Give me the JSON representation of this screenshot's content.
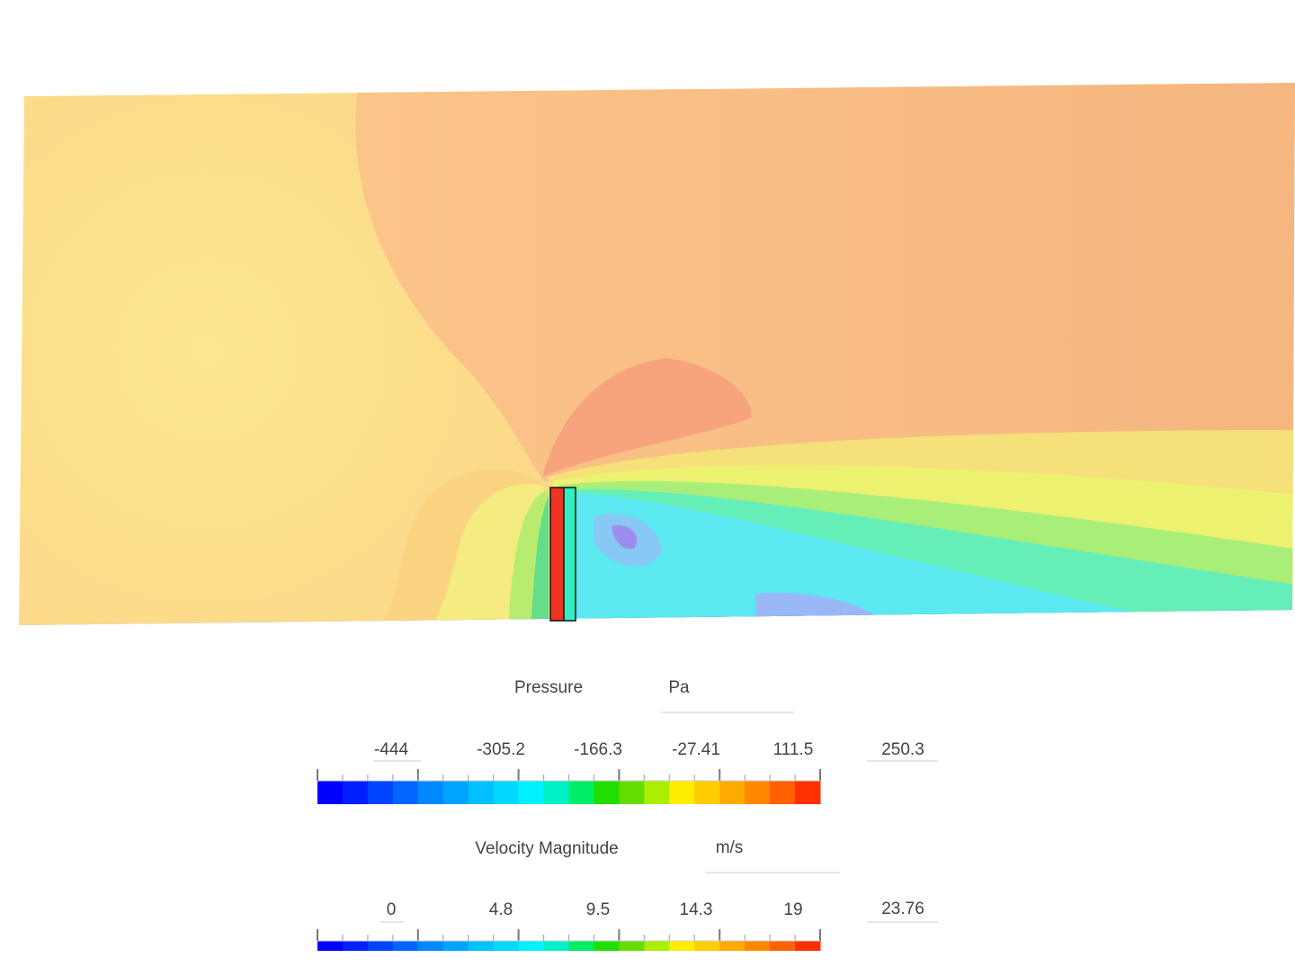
{
  "legends": [
    {
      "title": "Pressure",
      "unit": "Pa",
      "labels": [
        "-444",
        "-305.2",
        "-166.3",
        "-27.41",
        "111.5"
      ],
      "max": "250.3",
      "colors": [
        "#0000ff",
        "#0020ff",
        "#0044ff",
        "#0066ff",
        "#0088ff",
        "#00a4ff",
        "#00c0ff",
        "#00d8ff",
        "#00f0ff",
        "#00f0c8",
        "#00ee66",
        "#22dd00",
        "#66dd00",
        "#aaee00",
        "#ffee00",
        "#ffcc00",
        "#ffaa00",
        "#ff8800",
        "#ff6000",
        "#ff3000"
      ]
    },
    {
      "title": "Velocity Magnitude",
      "unit": "m/s",
      "labels": [
        "0",
        "4.8",
        "9.5",
        "14.3",
        "19"
      ],
      "max": "23.76",
      "colors": [
        "#0000ff",
        "#0020ff",
        "#0044ff",
        "#0066ff",
        "#0088ff",
        "#00a4ff",
        "#00c0ff",
        "#00d8ff",
        "#00f0ff",
        "#00f0c8",
        "#00ee66",
        "#22dd00",
        "#66dd00",
        "#aaee00",
        "#ffee00",
        "#ffcc00",
        "#ffaa00",
        "#ff8800",
        "#ff6000",
        "#ff3000"
      ]
    }
  ]
}
